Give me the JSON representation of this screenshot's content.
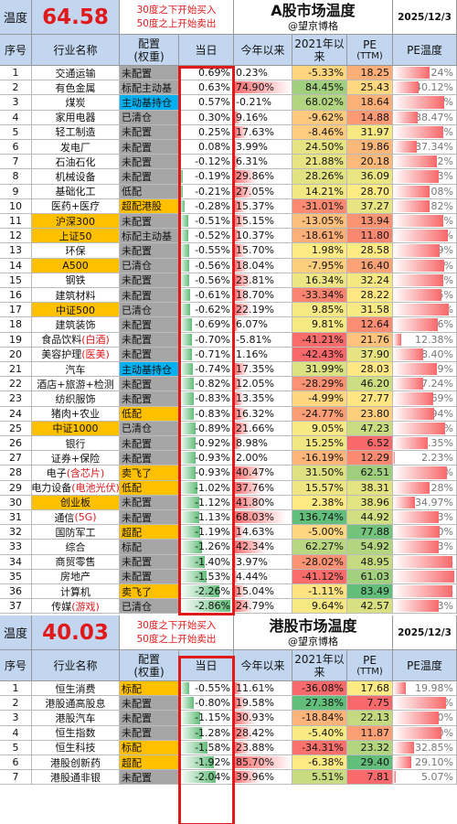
{
  "a_share": {
    "temp_label": "温度",
    "temp_value": "64.58",
    "rule_buy": "30度之下开始买入",
    "rule_sell": "50度之上开始卖出",
    "title": "A股市场温度",
    "subtitle": "@望京博格",
    "date": "2025/12/3",
    "headers": {
      "idx": "序号",
      "name": "行业名称",
      "cfg_top": "配置",
      "cfg_bottom": "(权重)",
      "today": "当日",
      "ytd": "今年以来",
      "since2021_top": "2021年以",
      "since2021_bottom": "来",
      "pe_top": "PE",
      "pe_bottom": "(TTM)",
      "pe_temp": "PE温度"
    },
    "rows": [
      {
        "idx": "1",
        "name": "交通运输",
        "hl": "",
        "cfg": "未配置",
        "cfg_color": "gray",
        "today": "0.69%",
        "ytd": "0.23%",
        "ytd_v": 0.23,
        "s21": "-5.33%",
        "s21_v": -5.33,
        "pe": "18.25",
        "pe_v": 18.25,
        "pct": "58.24%",
        "pct_v": 58.24,
        "bg": ""
      },
      {
        "idx": "2",
        "name": "有色金属",
        "hl": "",
        "cfg": "标配主动基",
        "cfg_color": "gray",
        "today": "0.63%",
        "ytd": "74.90%",
        "ytd_v": 74.9,
        "s21": "84.45%",
        "s21_v": 84.45,
        "pe": "25.43",
        "pe_v": 25.43,
        "pct": "40.12%",
        "pct_v": 40.12,
        "bg": ""
      },
      {
        "idx": "3",
        "name": "煤炭",
        "hl": "",
        "cfg": "主动基持仓",
        "cfg_color": "blue",
        "today": "0.57%",
        "ytd": "-0.21%",
        "ytd_v": -0.21,
        "s21": "68.02%",
        "s21_v": 68.02,
        "pe": "18.64",
        "pe_v": 18.64,
        "pct": "81.87%",
        "pct_v": 81.87,
        "bg": ""
      },
      {
        "idx": "4",
        "name": "家用电器",
        "hl": "",
        "cfg": "已清仓",
        "cfg_color": "gray",
        "today": "0.30%",
        "ytd": "9.16%",
        "ytd_v": 9.16,
        "s21": "-9.62%",
        "s21_v": -9.62,
        "pe": "14.88",
        "pe_v": 14.88,
        "pct": "38.47%",
        "pct_v": 38.47,
        "bg": ""
      },
      {
        "idx": "5",
        "name": "轻工制造",
        "hl": "",
        "cfg": "未配置",
        "cfg_color": "gray",
        "today": "0.25%",
        "ytd": "17.63%",
        "ytd_v": 17.63,
        "s21": "-8.46%",
        "s21_v": -8.46,
        "pe": "31.97",
        "pe_v": 31.97,
        "pct": "79.65%",
        "pct_v": 79.65,
        "bg": ""
      },
      {
        "idx": "6",
        "name": "发电厂",
        "hl": "",
        "cfg": "未配置",
        "cfg_color": "gray",
        "today": "0.08%",
        "ytd": "3.99%",
        "ytd_v": 3.99,
        "s21": "24.50%",
        "s21_v": 24.5,
        "pe": "19.86",
        "pe_v": 19.86,
        "pct": "37.34%",
        "pct_v": 37.34,
        "bg": ""
      },
      {
        "idx": "7",
        "name": "石油石化",
        "hl": "",
        "cfg": "未配置",
        "cfg_color": "gray",
        "today": "-0.12%",
        "ytd": "6.31%",
        "ytd_v": 6.31,
        "s21": "21.88%",
        "s21_v": 21.88,
        "pe": "20.18",
        "pe_v": 20.18,
        "pct": "69.32%",
        "pct_v": 69.32,
        "bg": ""
      },
      {
        "idx": "8",
        "name": "机械设备",
        "hl": "",
        "cfg": "未配置",
        "cfg_color": "gray",
        "today": "-0.19%",
        "ytd": "29.86%",
        "ytd_v": 29.86,
        "s21": "28.26%",
        "s21_v": 28.26,
        "pe": "36.09",
        "pe_v": 36.09,
        "pct": "72.53%",
        "pct_v": 72.53,
        "bg": ""
      },
      {
        "idx": "9",
        "name": "基础化工",
        "hl": "",
        "cfg": "低配",
        "cfg_color": "gray",
        "today": "-0.21%",
        "ytd": "27.05%",
        "ytd_v": 27.05,
        "s21": "14.21%",
        "s21_v": 14.21,
        "pe": "28.70",
        "pe_v": 28.7,
        "pct": "58.08%",
        "pct_v": 58.08,
        "bg": ""
      },
      {
        "idx": "10",
        "name": "医药+医疗",
        "hl": "",
        "cfg": "超配港股",
        "cfg_color": "orange",
        "today": "-0.28%",
        "ytd": "15.37%",
        "ytd_v": 15.37,
        "s21": "-31.01%",
        "s21_v": -31.01,
        "pe": "37.27",
        "pe_v": 37.27,
        "pct": "57.82%",
        "pct_v": 57.82,
        "bg": ""
      },
      {
        "idx": "11",
        "name": "沪深300",
        "hl": "",
        "cfg": "未配置",
        "cfg_color": "gray",
        "today": "-0.51%",
        "ytd": "15.15%",
        "ytd_v": 15.15,
        "s21": "-13.05%",
        "s21_v": -13.05,
        "pe": "13.94",
        "pe_v": 13.94,
        "pct": "79.78%",
        "pct_v": 79.78,
        "bg": "orange"
      },
      {
        "idx": "12",
        "name": "上证50",
        "hl": "",
        "cfg": "标配主动基",
        "cfg_color": "gray",
        "today": "-0.52%",
        "ytd": "10.37%",
        "ytd_v": 10.37,
        "s21": "-18.61%",
        "s21_v": -18.61,
        "pe": "11.80",
        "pe_v": 11.8,
        "pct": "87.44%",
        "pct_v": 87.44,
        "bg": "orange"
      },
      {
        "idx": "13",
        "name": "环保",
        "hl": "",
        "cfg": "未配置",
        "cfg_color": "gray",
        "today": "-0.55%",
        "ytd": "15.70%",
        "ytd_v": 15.7,
        "s21": "1.98%",
        "s21_v": 1.98,
        "pe": "28.58",
        "pe_v": 28.58,
        "pct": "74.39%",
        "pct_v": 74.39,
        "bg": ""
      },
      {
        "idx": "14",
        "name": "A500",
        "hl": "",
        "cfg": "已清仓",
        "cfg_color": "gray",
        "today": "-0.56%",
        "ytd": "18.04%",
        "ytd_v": 18.04,
        "s21": "-7.95%",
        "s21_v": -7.95,
        "pe": "16.40",
        "pe_v": 16.4,
        "pct": "81.43%",
        "pct_v": 81.43,
        "bg": "orange"
      },
      {
        "idx": "15",
        "name": "钢铁",
        "hl": "",
        "cfg": "未配置",
        "cfg_color": "gray",
        "today": "-0.56%",
        "ytd": "23.81%",
        "ytd_v": 23.81,
        "s21": "16.34%",
        "s21_v": 16.34,
        "pe": "32.24",
        "pe_v": 32.24,
        "pct": "80.15%",
        "pct_v": 80.15,
        "bg": ""
      },
      {
        "idx": "16",
        "name": "建筑材料",
        "hl": "",
        "cfg": "未配置",
        "cfg_color": "gray",
        "today": "-0.61%",
        "ytd": "18.70%",
        "ytd_v": 18.7,
        "s21": "-33.34%",
        "s21_v": -33.34,
        "pe": "28.22",
        "pe_v": 28.22,
        "pct": "77.35%",
        "pct_v": 77.35,
        "bg": ""
      },
      {
        "idx": "17",
        "name": "中证500",
        "hl": "",
        "cfg": "已清仓",
        "cfg_color": "gray",
        "today": "-0.62%",
        "ytd": "22.19%",
        "ytd_v": 22.19,
        "s21": "9.85%",
        "s21_v": 9.85,
        "pe": "31.58",
        "pe_v": 31.58,
        "pct": "88.37%",
        "pct_v": 88.37,
        "bg": "orange"
      },
      {
        "idx": "18",
        "name": "建筑装饰",
        "hl": "",
        "cfg": "未配置",
        "cfg_color": "gray",
        "today": "-0.69%",
        "ytd": "6.07%",
        "ytd_v": 6.07,
        "s21": "9.81%",
        "s21_v": 9.81,
        "pe": "12.64",
        "pe_v": 12.64,
        "pct": "71.16%",
        "pct_v": 71.16,
        "bg": ""
      },
      {
        "idx": "19",
        "name": "食品饮料",
        "hl": "(白酒)",
        "cfg": "未配置",
        "cfg_color": "gray",
        "today": "-0.70%",
        "ytd": "-5.81%",
        "ytd_v": -5.81,
        "s21": "-41.21%",
        "s21_v": -41.21,
        "pe": "21.76",
        "pe_v": 21.76,
        "pct": "12.38%",
        "pct_v": 12.38,
        "bg": ""
      },
      {
        "idx": "20",
        "name": "美容护理",
        "hl": "(医美)",
        "cfg": "未配置",
        "cfg_color": "gray",
        "today": "-0.71%",
        "ytd": "1.16%",
        "ytd_v": 1.16,
        "s21": "-42.43%",
        "s21_v": -42.43,
        "pe": "37.90",
        "pe_v": 37.9,
        "pct": "48.40%",
        "pct_v": 48.4,
        "bg": ""
      },
      {
        "idx": "21",
        "name": "汽车",
        "hl": "",
        "cfg": "主动基持仓",
        "cfg_color": "blue",
        "today": "-0.74%",
        "ytd": "17.35%",
        "ytd_v": 17.35,
        "s21": "31.99%",
        "s21_v": 31.99,
        "pe": "28.03",
        "pe_v": 28.03,
        "pct": "68.99%",
        "pct_v": 68.99,
        "bg": ""
      },
      {
        "idx": "22",
        "name": "酒店+旅游+检测",
        "hl": "",
        "cfg": "未配置",
        "cfg_color": "gray",
        "today": "-0.82%",
        "ytd": "12.05%",
        "ytd_v": 12.05,
        "s21": "-28.29%",
        "s21_v": -28.29,
        "pe": "46.20",
        "pe_v": 46.2,
        "pct": "47.24%",
        "pct_v": 47.24,
        "bg": ""
      },
      {
        "idx": "23",
        "name": "纺织服饰",
        "hl": "",
        "cfg": "未配置",
        "cfg_color": "gray",
        "today": "-0.83%",
        "ytd": "13.35%",
        "ytd_v": 13.35,
        "s21": "-4.99%",
        "s21_v": -4.99,
        "pe": "27.77",
        "pe_v": 27.77,
        "pct": "63.69%",
        "pct_v": 63.69,
        "bg": ""
      },
      {
        "idx": "24",
        "name": "猪肉+农业",
        "hl": "",
        "cfg": "低配",
        "cfg_color": "orange",
        "today": "-0.83%",
        "ytd": "16.32%",
        "ytd_v": 16.32,
        "s21": "-24.77%",
        "s21_v": -24.77,
        "pe": "23.80",
        "pe_v": 23.8,
        "pct": "64.94%",
        "pct_v": 64.94,
        "bg": ""
      },
      {
        "idx": "25",
        "name": "中证1000",
        "hl": "",
        "cfg": "已清仓",
        "cfg_color": "gray",
        "today": "-0.89%",
        "ytd": "21.66%",
        "ytd_v": 21.66,
        "s21": "9.05%",
        "s21_v": 9.05,
        "pe": "47.23",
        "pe_v": 47.23,
        "pct": "82.14%",
        "pct_v": 82.14,
        "bg": "orange"
      },
      {
        "idx": "26",
        "name": "银行",
        "hl": "",
        "cfg": "未配置",
        "cfg_color": "gray",
        "today": "-0.92%",
        "ytd": "8.98%",
        "ytd_v": 8.98,
        "s21": "15.25%",
        "s21_v": 15.25,
        "pe": "6.52",
        "pe_v": 6.52,
        "pct": "55.35%",
        "pct_v": 55.35,
        "bg": ""
      },
      {
        "idx": "27",
        "name": "证券+保险",
        "hl": "",
        "cfg": "未配置",
        "cfg_color": "gray",
        "today": "-0.93%",
        "ytd": "2.00%",
        "ytd_v": 2.0,
        "s21": "-16.19%",
        "s21_v": -16.19,
        "pe": "12.29",
        "pe_v": 12.29,
        "pct": "2.23%",
        "pct_v": 2.23,
        "bg": ""
      },
      {
        "idx": "28",
        "name": "电子",
        "hl": "(含芯片)",
        "cfg": "卖飞了",
        "cfg_color": "orange",
        "today": "-0.93%",
        "ytd": "40.47%",
        "ytd_v": 40.47,
        "s21": "31.50%",
        "s21_v": 31.5,
        "pe": "62.51",
        "pe_v": 62.51,
        "pct": "86.22%",
        "pct_v": 86.22,
        "bg": ""
      },
      {
        "idx": "29",
        "name": "电力设备",
        "hl": "(电池光伏)",
        "cfg": "低配",
        "cfg_color": "orange",
        "today": "-1.02%",
        "ytd": "37.76%",
        "ytd_v": 37.76,
        "s21": "15.57%",
        "s21_v": 15.57,
        "pe": "38.31",
        "pe_v": 38.31,
        "pct": "57.28%",
        "pct_v": 57.28,
        "bg": ""
      },
      {
        "idx": "30",
        "name": "创业板",
        "hl": "",
        "cfg": "未配置",
        "cfg_color": "gray",
        "today": "-1.12%",
        "ytd": "41.80%",
        "ytd_v": 41.8,
        "s21": "2.38%",
        "s21_v": 2.38,
        "pe": "38.96",
        "pe_v": 38.96,
        "pct": "34.97%",
        "pct_v": 34.97,
        "bg": "orange"
      },
      {
        "idx": "31",
        "name": "通信",
        "hl": "(5G)",
        "cfg": "未配置",
        "cfg_color": "gray",
        "today": "-1.13%",
        "ytd": "68.03%",
        "ytd_v": 68.03,
        "s21": "136.74%",
        "s21_v": 136.74,
        "pe": "44.92",
        "pe_v": 44.92,
        "pct": "71.83%",
        "pct_v": 71.83,
        "bg": ""
      },
      {
        "idx": "32",
        "name": "国防军工",
        "hl": "",
        "cfg": "超配",
        "cfg_color": "orange",
        "today": "-1.19%",
        "ytd": "14.63%",
        "ytd_v": 14.63,
        "s21": "-5.00%",
        "s21_v": -5.0,
        "pe": "77.88",
        "pe_v": 77.88,
        "pct": "73.60%",
        "pct_v": 73.6,
        "bg": ""
      },
      {
        "idx": "33",
        "name": "综合",
        "hl": "",
        "cfg": "标配",
        "cfg_color": "gray",
        "today": "-1.26%",
        "ytd": "42.34%",
        "ytd_v": 42.34,
        "s21": "62.27%",
        "s21_v": 62.27,
        "pe": "54.92",
        "pe_v": 54.92,
        "pct": "71.83%",
        "pct_v": 71.83,
        "bg": ""
      },
      {
        "idx": "34",
        "name": "商贸零售",
        "hl": "",
        "cfg": "未配置",
        "cfg_color": "gray",
        "today": "-1.40%",
        "ytd": "3.97%",
        "ytd_v": 3.97,
        "s21": "-28.02%",
        "s21_v": -28.02,
        "pe": "48.95",
        "pe_v": 48.95,
        "pct": "94.71%",
        "pct_v": 94.71,
        "bg": ""
      },
      {
        "idx": "35",
        "name": "房地产",
        "hl": "",
        "cfg": "未配置",
        "cfg_color": "gray",
        "today": "-1.53%",
        "ytd": "4.44%",
        "ytd_v": 4.44,
        "s21": "-41.12%",
        "s21_v": -41.12,
        "pe": "61.03",
        "pe_v": 61.03,
        "pct": "97.49%",
        "pct_v": 97.49,
        "bg": ""
      },
      {
        "idx": "36",
        "name": "计算机",
        "hl": "",
        "cfg": "卖飞了",
        "cfg_color": "orange",
        "today": "-2.26%",
        "ytd": "15.04%",
        "ytd_v": 15.04,
        "s21": "-1.11%",
        "s21_v": -1.11,
        "pe": "83.49",
        "pe_v": 83.49,
        "pct": "94.23%",
        "pct_v": 94.23,
        "bg": ""
      },
      {
        "idx": "37",
        "name": "传媒",
        "hl": "(游戏)",
        "cfg": "已清仓",
        "cfg_color": "gray",
        "today": "-2.86%",
        "ytd": "24.79%",
        "ytd_v": 24.79,
        "s21": "9.64%",
        "s21_v": 9.64,
        "pe": "42.57",
        "pe_v": 42.57,
        "pct": "71.83%",
        "pct_v": 71.83,
        "bg": ""
      }
    ]
  },
  "hk_share": {
    "temp_label": "温度",
    "temp_value": "40.03",
    "rule_buy": "30度之下开始买入",
    "rule_sell": "50度之上开始卖出",
    "title": "港股市场温度",
    "subtitle": "@望京博格",
    "date": "2025/12/3",
    "headers": {
      "idx": "序号",
      "name": "行业名称",
      "cfg_top": "配置",
      "cfg_bottom": "(权重)",
      "today": "当日",
      "ytd": "今年以来",
      "since2021_top": "2021年以",
      "since2021_bottom": "来",
      "pe_top": "PE",
      "pe_bottom": "(TTM)",
      "pe_temp": "PE温度"
    },
    "rows": [
      {
        "idx": "1",
        "name": "恒生消费",
        "hl": "",
        "cfg": "标配",
        "cfg_color": "orange",
        "today": "-0.55%",
        "ytd": "11.61%",
        "ytd_v": 11.61,
        "s21": "-36.08%",
        "s21_v": -36.08,
        "pe": "17.68",
        "pe_v": 17.68,
        "pct": "19.98%",
        "pct_v": 19.98,
        "bg": ""
      },
      {
        "idx": "2",
        "name": "港股通高股息",
        "hl": "",
        "cfg": "未配置",
        "cfg_color": "gray",
        "today": "-0.80%",
        "ytd": "19.58%",
        "ytd_v": 19.58,
        "s21": "27.38%",
        "s21_v": 27.38,
        "pe": "7.75",
        "pe_v": 7.75,
        "pct": "84.23%",
        "pct_v": 84.23,
        "bg": ""
      },
      {
        "idx": "3",
        "name": "港股汽车",
        "hl": "",
        "cfg": "未配置",
        "cfg_color": "gray",
        "today": "-1.15%",
        "ytd": "30.93%",
        "ytd_v": 30.93,
        "s21": "-18.84%",
        "s21_v": -18.84,
        "pe": "22.13",
        "pe_v": 22.13,
        "pct": "71.80%",
        "pct_v": 71.8,
        "bg": ""
      },
      {
        "idx": "4",
        "name": "恒生指数",
        "hl": "",
        "cfg": "未配置",
        "cfg_color": "gray",
        "today": "-1.28%",
        "ytd": "28.42%",
        "ytd_v": 28.42,
        "s21": "-5.40%",
        "s21_v": -5.4,
        "pe": "11.87",
        "pe_v": 11.87,
        "pct": "77.20%",
        "pct_v": 77.2,
        "bg": ""
      },
      {
        "idx": "5",
        "name": "恒生科技",
        "hl": "",
        "cfg": "标配",
        "cfg_color": "orange",
        "today": "-1.58%",
        "ytd": "23.88%",
        "ytd_v": 23.88,
        "s21": "-34.31%",
        "s21_v": -34.31,
        "pe": "23.32",
        "pe_v": 23.32,
        "pct": "32.85%",
        "pct_v": 32.85,
        "bg": ""
      },
      {
        "idx": "6",
        "name": "港股创新药",
        "hl": "",
        "cfg": "超配",
        "cfg_color": "orange",
        "today": "-1.92%",
        "ytd": "85.70%",
        "ytd_v": 85.7,
        "s21": "-6.38%",
        "s21_v": -6.38,
        "pe": "29.40",
        "pe_v": 29.4,
        "pct": "29.10%",
        "pct_v": 29.1,
        "bg": ""
      },
      {
        "idx": "7",
        "name": "港股通非银",
        "hl": "",
        "cfg": "未配置",
        "cfg_color": "gray",
        "today": "-2.04%",
        "ytd": "39.96%",
        "ytd_v": 39.96,
        "s21": "5.51%",
        "s21_v": 5.51,
        "pe": "7.81",
        "pe_v": 7.81,
        "pct": "5.07%",
        "pct_v": 5.07,
        "bg": ""
      }
    ]
  },
  "colors": {
    "header_bg": "#c3d6f0",
    "accent_red": "#e0191b",
    "cfg_gray": "#a6a6a6",
    "cfg_orange": "#ffc000",
    "cfg_blue": "#00b0f0",
    "hm_red": "#f8696b",
    "hm_yellow": "#ffeb84",
    "hm_green": "#63be7b"
  }
}
